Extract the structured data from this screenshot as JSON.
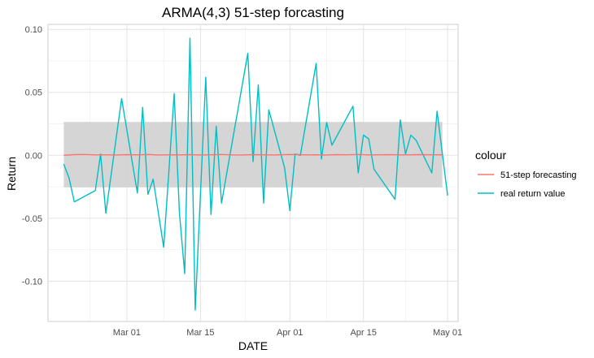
{
  "chart_data": {
    "type": "line",
    "title": "ARMA(4,3) 51-step forcasting",
    "xlabel": "DATE",
    "ylabel": "Return",
    "x_ticks": [
      "Mar 01",
      "Mar 15",
      "Apr 01",
      "Apr 15",
      "May 01"
    ],
    "y_ticks": [
      "-0.10",
      "-0.05",
      "0.00",
      "0.05",
      "0.10"
    ],
    "ylim": [
      -0.132,
      0.104
    ],
    "xlim": [
      "2021-02-14",
      "2021-05-03"
    ],
    "grid": true,
    "legend_placement": "right",
    "legend_title": "colour",
    "band": {
      "lower": -0.0255,
      "upper": 0.0265,
      "color": "#d3d3d3"
    },
    "series": [
      {
        "name": "51-step forecasting",
        "color": "#f8766d",
        "x": [
          "2021-02-17",
          "2021-02-19",
          "2021-02-21",
          "2021-02-23",
          "2021-02-25",
          "2021-02-27",
          "2021-03-01",
          "2021-03-03",
          "2021-03-05",
          "2021-03-07",
          "2021-03-09",
          "2021-03-11",
          "2021-03-13",
          "2021-03-15",
          "2021-03-17",
          "2021-03-19",
          "2021-03-21",
          "2021-03-23",
          "2021-03-25",
          "2021-03-27",
          "2021-03-29",
          "2021-03-31",
          "2021-04-02",
          "2021-04-04",
          "2021-04-06",
          "2021-04-08",
          "2021-04-10",
          "2021-04-12",
          "2021-04-14",
          "2021-04-16",
          "2021-04-18",
          "2021-04-20",
          "2021-04-22",
          "2021-04-24",
          "2021-04-26",
          "2021-04-28",
          "2021-04-30"
        ],
        "values": [
          0.0,
          0.0005,
          0.0006,
          0.0003,
          0.0004,
          0.0002,
          0.0005,
          0.0003,
          0.0006,
          0.0002,
          0.0004,
          0.0003,
          0.0005,
          0.0002,
          0.0004,
          0.0006,
          0.0003,
          0.0002,
          0.0005,
          0.0004,
          0.0002,
          0.0005,
          0.0006,
          0.0003,
          0.0004,
          0.0002,
          0.0005,
          0.0004,
          0.0006,
          0.0003,
          0.0004,
          0.0005,
          0.0003,
          0.0004,
          0.0005,
          0.0004,
          0.0004
        ]
      },
      {
        "name": "real return value",
        "color": "#00bfc4",
        "x": [
          "2021-02-17",
          "2021-02-18",
          "2021-02-19",
          "2021-02-23",
          "2021-02-24",
          "2021-02-25",
          "2021-02-28",
          "2021-03-03",
          "2021-03-04",
          "2021-03-05",
          "2021-03-06",
          "2021-03-08",
          "2021-03-10",
          "2021-03-11",
          "2021-03-12",
          "2021-03-13",
          "2021-03-14",
          "2021-03-16",
          "2021-03-17",
          "2021-03-18",
          "2021-03-19",
          "2021-03-24",
          "2021-03-25",
          "2021-03-26",
          "2021-03-27",
          "2021-03-28",
          "2021-03-31",
          "2021-04-01",
          "2021-04-02",
          "2021-04-03",
          "2021-04-06",
          "2021-04-07",
          "2021-04-08",
          "2021-04-09",
          "2021-04-13",
          "2021-04-14",
          "2021-04-15",
          "2021-04-16",
          "2021-04-17",
          "2021-04-21",
          "2021-04-22",
          "2021-04-23",
          "2021-04-24",
          "2021-04-25",
          "2021-04-28",
          "2021-04-29",
          "2021-05-01"
        ],
        "values": [
          -0.007,
          -0.018,
          -0.037,
          -0.028,
          0.001,
          -0.046,
          0.045,
          -0.03,
          0.038,
          -0.031,
          -0.019,
          -0.073,
          0.049,
          -0.046,
          -0.094,
          0.093,
          -0.123,
          0.062,
          -0.047,
          0.023,
          -0.038,
          0.081,
          -0.005,
          0.056,
          -0.038,
          0.036,
          -0.01,
          -0.044,
          0.001,
          0.0,
          0.073,
          -0.003,
          0.026,
          0.008,
          0.039,
          -0.014,
          0.016,
          0.013,
          -0.011,
          -0.035,
          0.028,
          0.001,
          0.016,
          0.012,
          -0.014,
          0.035,
          -0.032
        ]
      }
    ]
  }
}
